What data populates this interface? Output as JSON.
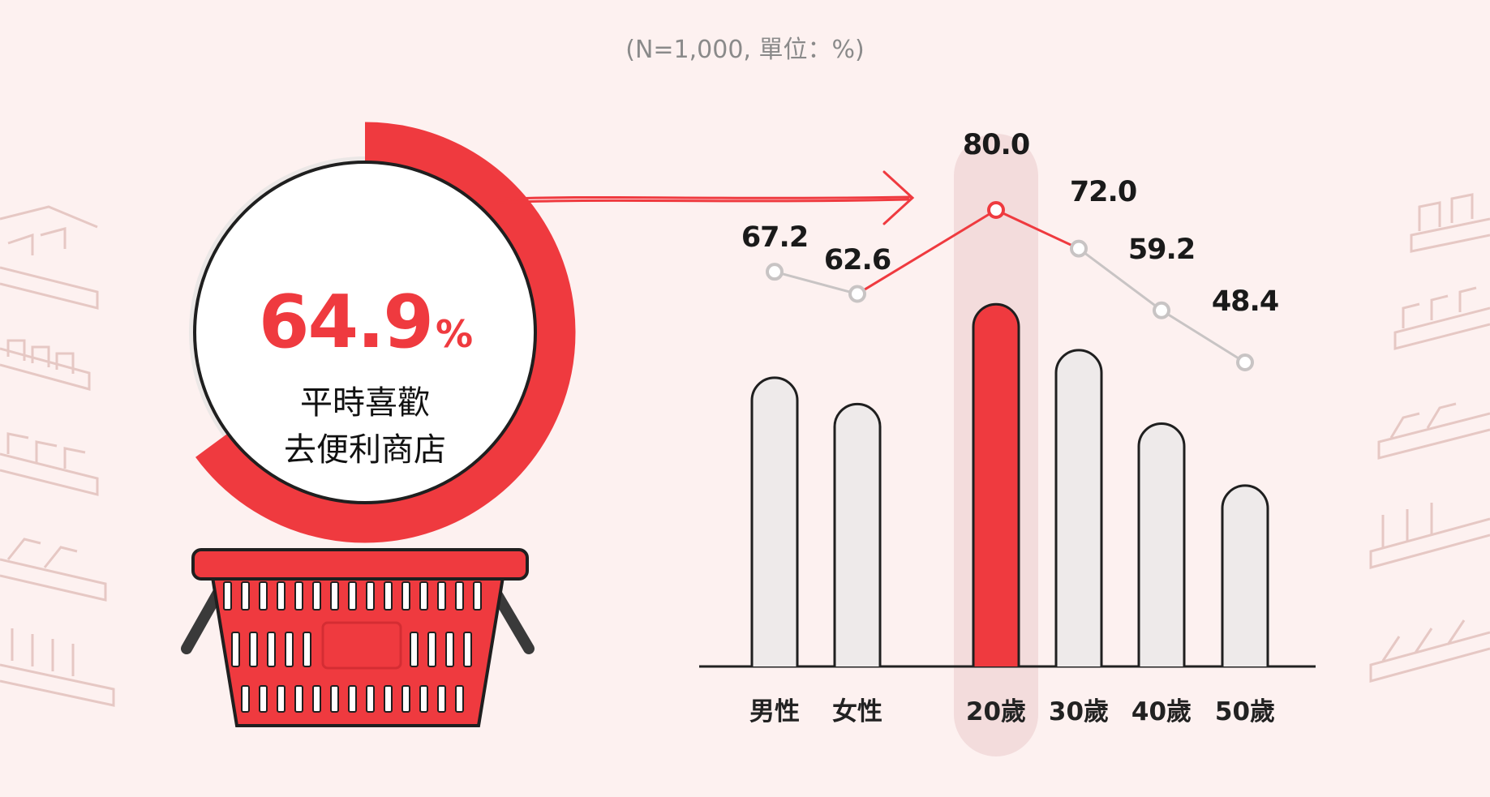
{
  "header": {
    "note": "(N=1,000, 單位：%)"
  },
  "highlight": {
    "value_text": "64.9",
    "unit": "%",
    "value": 64.9,
    "caption_line1": "平時喜歡",
    "caption_line2": "去便利商店"
  },
  "colors": {
    "accent": "#ef3a3f",
    "bar_default": "#eeeaea",
    "line_default": "#c8c4c4",
    "background": "#fdf1f0",
    "highlight_band": "#f3dcdc"
  },
  "chart_data": {
    "type": "bar",
    "categories": [
      "男性",
      "女性",
      "20歲",
      "30歲",
      "40歲",
      "50歲"
    ],
    "values": [
      67.2,
      62.6,
      80.0,
      72.0,
      59.2,
      48.4
    ],
    "value_labels": [
      "67.2",
      "62.6",
      "80.0",
      "72.0",
      "59.2",
      "48.4"
    ],
    "highlighted_category": "20歲",
    "overlay": "line connecting values above bars",
    "ylim": [
      0,
      100
    ],
    "grid": false
  }
}
